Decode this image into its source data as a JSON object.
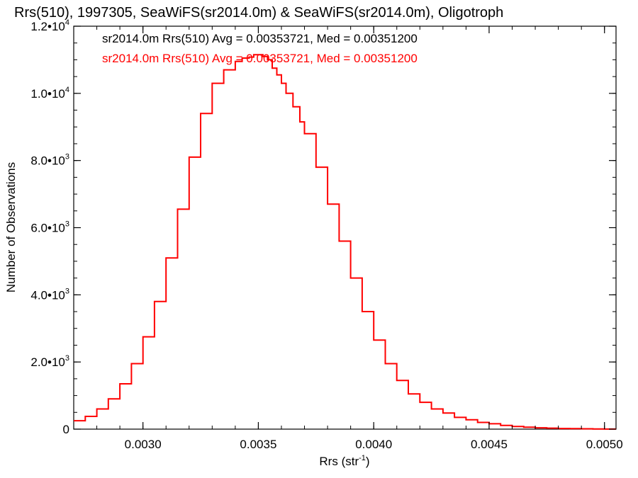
{
  "chart_data": {
    "type": "histogram",
    "title": "Rrs(510), 1997305, SeaWiFS(sr2014.0m) & SeaWiFS(sr2014.0m), Oligotroph",
    "xlabel_base": "Rrs (str",
    "xlabel_sup": "-1",
    "xlabel_close": ")",
    "ylabel": "Number of Observations",
    "xlim": [
      0.0027,
      0.00505
    ],
    "ylim": [
      0,
      12000
    ],
    "x_ticks": [
      {
        "value": 0.003,
        "label": "0.0030"
      },
      {
        "value": 0.0035,
        "label": "0.0035"
      },
      {
        "value": 0.004,
        "label": "0.0040"
      },
      {
        "value": 0.0045,
        "label": "0.0045"
      },
      {
        "value": 0.005,
        "label": "0.0050"
      }
    ],
    "y_ticks": [
      {
        "value": 0,
        "mant": "0",
        "exp": ""
      },
      {
        "value": 2000,
        "mant": "2.0•10",
        "exp": "3"
      },
      {
        "value": 4000,
        "mant": "4.0•10",
        "exp": "3"
      },
      {
        "value": 6000,
        "mant": "6.0•10",
        "exp": "3"
      },
      {
        "value": 8000,
        "mant": "8.0•10",
        "exp": "3"
      },
      {
        "value": 10000,
        "mant": "1.0•10",
        "exp": "4"
      },
      {
        "value": 12000,
        "mant": "1.2•10",
        "exp": "4"
      }
    ],
    "grid": false,
    "legend": [
      {
        "text": "sr2014.0m Rrs(510) Avg = 0.00353721, Med = 0.00351200",
        "color": "#000000"
      },
      {
        "text": "sr2014.0m Rrs(510) Avg = 0.00353721, Med = 0.00351200",
        "color": "#ff0000"
      }
    ],
    "series": [
      {
        "color": "#ff0000",
        "x": [
          0.0027,
          0.00275,
          0.0028,
          0.00285,
          0.0029,
          0.00295,
          0.003,
          0.00305,
          0.0031,
          0.00315,
          0.0032,
          0.00325,
          0.0033,
          0.00335,
          0.0034,
          0.00343,
          0.00346,
          0.00348,
          0.0035,
          0.00352,
          0.00354,
          0.00356,
          0.00358,
          0.0036,
          0.00362,
          0.00365,
          0.00368,
          0.0037,
          0.00375,
          0.0038,
          0.00385,
          0.0039,
          0.00395,
          0.004,
          0.00405,
          0.0041,
          0.00415,
          0.0042,
          0.00425,
          0.0043,
          0.00435,
          0.0044,
          0.00445,
          0.0045,
          0.00455,
          0.0046,
          0.00465,
          0.0047,
          0.00475,
          0.0048,
          0.00485,
          0.0049,
          0.00495,
          0.005,
          0.00505
        ],
        "y": [
          250,
          380,
          600,
          900,
          1350,
          1950,
          2750,
          3800,
          5100,
          6550,
          8100,
          9400,
          10300,
          10700,
          10950,
          11050,
          11080,
          11150,
          11150,
          11100,
          11000,
          10750,
          10550,
          10300,
          10000,
          9600,
          9150,
          8800,
          7800,
          6700,
          5600,
          4500,
          3500,
          2650,
          1950,
          1450,
          1050,
          800,
          600,
          480,
          350,
          280,
          200,
          160,
          110,
          80,
          60,
          40,
          30,
          20,
          15,
          10,
          5,
          3,
          2
        ]
      }
    ]
  }
}
